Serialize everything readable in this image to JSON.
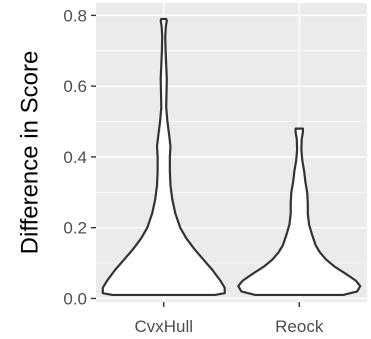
{
  "chart_data": {
    "type": "violin",
    "title": "",
    "xlabel": "",
    "ylabel": "Difference in Score",
    "categories": [
      "CvxHull",
      "Reock"
    ],
    "ylim": [
      -0.01,
      0.835
    ],
    "yticks": [
      0.0,
      0.2,
      0.4,
      0.6,
      0.8
    ],
    "ytick_labels": [
      "0.0",
      "0.2",
      "0.4",
      "0.6",
      "0.8"
    ],
    "grid": true,
    "legend": "none",
    "panel_background": "#ebebeb",
    "grid_color": "#ffffff",
    "violin_fill": "#ffffff",
    "violin_stroke": "#333333",
    "violins": [
      {
        "name": "CvxHull",
        "range": [
          0.01,
          0.79
        ],
        "profile": [
          [
            0.01,
            0.84
          ],
          [
            0.015,
            1.0
          ],
          [
            0.03,
            1.0
          ],
          [
            0.05,
            0.93
          ],
          [
            0.08,
            0.8
          ],
          [
            0.11,
            0.65
          ],
          [
            0.14,
            0.5
          ],
          [
            0.17,
            0.37
          ],
          [
            0.2,
            0.27
          ],
          [
            0.24,
            0.19
          ],
          [
            0.28,
            0.14
          ],
          [
            0.32,
            0.11
          ],
          [
            0.36,
            0.1
          ],
          [
            0.4,
            0.1
          ],
          [
            0.43,
            0.11
          ],
          [
            0.46,
            0.09
          ],
          [
            0.5,
            0.06
          ],
          [
            0.54,
            0.04
          ],
          [
            0.58,
            0.045
          ],
          [
            0.62,
            0.05
          ],
          [
            0.66,
            0.04
          ],
          [
            0.7,
            0.03
          ],
          [
            0.74,
            0.025
          ],
          [
            0.77,
            0.035
          ],
          [
            0.785,
            0.05
          ],
          [
            0.79,
            0.04
          ]
        ]
      },
      {
        "name": "Reock",
        "range": [
          0.01,
          0.48
        ],
        "profile": [
          [
            0.01,
            0.72
          ],
          [
            0.02,
            0.95
          ],
          [
            0.035,
            1.0
          ],
          [
            0.05,
            0.93
          ],
          [
            0.07,
            0.76
          ],
          [
            0.09,
            0.58
          ],
          [
            0.11,
            0.44
          ],
          [
            0.13,
            0.34
          ],
          [
            0.15,
            0.27
          ],
          [
            0.18,
            0.21
          ],
          [
            0.21,
            0.16
          ],
          [
            0.24,
            0.14
          ],
          [
            0.27,
            0.14
          ],
          [
            0.3,
            0.13
          ],
          [
            0.33,
            0.1
          ],
          [
            0.36,
            0.08
          ],
          [
            0.39,
            0.05
          ],
          [
            0.42,
            0.035
          ],
          [
            0.45,
            0.04
          ],
          [
            0.47,
            0.06
          ],
          [
            0.48,
            0.06
          ]
        ]
      }
    ]
  }
}
